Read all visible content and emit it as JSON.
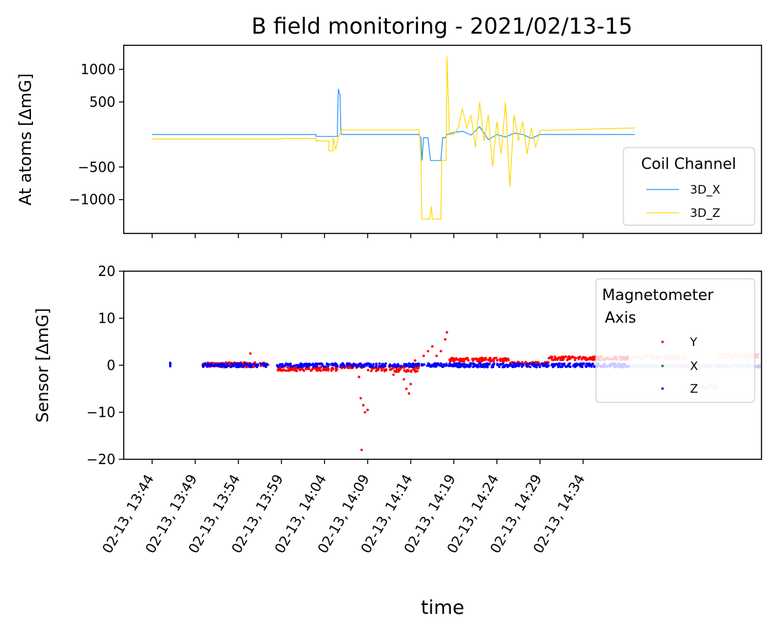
{
  "figure": {
    "title": "B field monitoring - 2021/02/13-15"
  },
  "chart_data": [
    {
      "type": "line",
      "ylabel": "At atoms [ΔmG]",
      "ylim": [
        -1520,
        1370
      ],
      "yticks": [
        1000,
        500,
        -500,
        -1000
      ],
      "ytick_labels": [
        "1000",
        "500",
        "−500",
        "−1000"
      ],
      "xlim": [
        -3.3,
        70.7
      ],
      "legend": {
        "title": "Coil Channel",
        "placement": "lower-right"
      },
      "series": [
        {
          "name": "3D_X",
          "color": "#1e90ff",
          "points": [
            [
              0,
              0
            ],
            [
              19,
              0
            ],
            [
              19,
              -30
            ],
            [
              21.5,
              -30
            ],
            [
              21.5,
              120
            ],
            [
              21.6,
              700
            ],
            [
              21.8,
              600
            ],
            [
              21.9,
              20
            ],
            [
              22,
              0
            ],
            [
              31,
              0
            ],
            [
              31,
              -20
            ],
            [
              31.2,
              -50
            ],
            [
              31.3,
              -400
            ],
            [
              31.5,
              -50
            ],
            [
              32,
              -50
            ],
            [
              32.3,
              -400
            ],
            [
              33.5,
              -400
            ],
            [
              33.7,
              -50
            ],
            [
              34,
              -50
            ],
            [
              34.2,
              0
            ],
            [
              35,
              30
            ],
            [
              36,
              50
            ],
            [
              37,
              -10
            ],
            [
              38,
              120
            ],
            [
              39,
              -80
            ],
            [
              40,
              0
            ],
            [
              41,
              -40
            ],
            [
              42,
              20
            ],
            [
              43,
              0
            ],
            [
              44,
              -60
            ],
            [
              45,
              0
            ],
            [
              56,
              0
            ]
          ]
        },
        {
          "name": "3D_Z",
          "color": "#ffd700",
          "points": [
            [
              0,
              -70
            ],
            [
              15,
              -70
            ],
            [
              15,
              -60
            ],
            [
              19,
              -60
            ],
            [
              19,
              -100
            ],
            [
              20.5,
              -100
            ],
            [
              20.5,
              -250
            ],
            [
              21,
              -250
            ],
            [
              21,
              -50
            ],
            [
              21.3,
              -230
            ],
            [
              21.6,
              -50
            ],
            [
              22,
              70
            ],
            [
              31,
              70
            ],
            [
              31.2,
              -400
            ],
            [
              31.3,
              -1300
            ],
            [
              32.2,
              -1300
            ],
            [
              32.4,
              -1100
            ],
            [
              32.5,
              -1300
            ],
            [
              33.5,
              -1300
            ],
            [
              33.6,
              -400
            ],
            [
              34.1,
              -400
            ],
            [
              34.2,
              1200
            ],
            [
              34.5,
              0
            ],
            [
              35,
              0
            ],
            [
              35.5,
              100
            ],
            [
              36,
              400
            ],
            [
              36.5,
              100
            ],
            [
              37,
              300
            ],
            [
              37.5,
              -200
            ],
            [
              38,
              500
            ],
            [
              38.5,
              -100
            ],
            [
              39,
              300
            ],
            [
              39.5,
              -500
            ],
            [
              40,
              200
            ],
            [
              40.5,
              -300
            ],
            [
              41,
              500
            ],
            [
              41.5,
              -800
            ],
            [
              42,
              300
            ],
            [
              42.5,
              -100
            ],
            [
              43,
              200
            ],
            [
              43.5,
              -300
            ],
            [
              44,
              100
            ],
            [
              44.5,
              -200
            ],
            [
              45,
              60
            ],
            [
              56,
              100
            ]
          ]
        }
      ]
    },
    {
      "type": "scatter",
      "xlabel": "time",
      "ylabel": "Sensor [ΔmG]",
      "ylim": [
        -20,
        20
      ],
      "yticks": [
        20,
        10,
        0,
        -10,
        -20
      ],
      "ytick_labels": [
        "20",
        "10",
        "0",
        "−10",
        "−20"
      ],
      "xlim": [
        -3.3,
        70.7
      ],
      "xticks": [
        0,
        5,
        10,
        15,
        20,
        25,
        30,
        35,
        40,
        45,
        50
      ],
      "xtick_labels": [
        "02-13, 13:44",
        "02-13, 13:49",
        "02-13, 13:54",
        "02-13, 13:59",
        "02-13, 14:04",
        "02-13, 14:09",
        "02-13, 14:14",
        "02-13, 14:19",
        "02-13, 14:24",
        "02-13, 14:29",
        "02-13, 14:34"
      ],
      "legend": {
        "title": "Magnetometer\n Axis",
        "placement": "upper-right"
      },
      "series": [
        {
          "name": "Y",
          "color": "#ff0000",
          "segments": [
            {
              "x0": 5.8,
              "x1": 13.5,
              "y": 0.1,
              "spread": 0.5
            },
            {
              "x0": 14.5,
              "x1": 21.5,
              "y": -0.8,
              "spread": 0.4
            },
            {
              "x0": 21.5,
              "x1": 24.5,
              "y": -0.2,
              "spread": 0.4
            },
            {
              "x0": 25,
              "x1": 31,
              "y": -0.8,
              "spread": 0.6
            },
            {
              "x0": 34.5,
              "x1": 41.5,
              "y": 1.2,
              "spread": 0.4
            },
            {
              "x0": 41.5,
              "x1": 46,
              "y": 0.4,
              "spread": 0.3
            },
            {
              "x0": 46,
              "x1": 55.5,
              "y": 1.5,
              "spread": 0.4
            }
          ],
          "points": [
            [
              11.4,
              2.5
            ],
            [
              24,
              -2.5
            ],
            [
              24.2,
              -7
            ],
            [
              24.5,
              -8.5
            ],
            [
              24.7,
              -10
            ],
            [
              25,
              -9.5
            ],
            [
              24.3,
              -18
            ],
            [
              28,
              -2
            ],
            [
              29.2,
              -3
            ],
            [
              29.5,
              -5
            ],
            [
              29.8,
              -6
            ],
            [
              30,
              -4
            ],
            [
              30.5,
              1
            ],
            [
              31.5,
              2
            ],
            [
              32,
              3
            ],
            [
              32.5,
              4
            ],
            [
              33,
              2
            ],
            [
              33.5,
              3
            ],
            [
              34.2,
              7
            ],
            [
              34,
              5.5
            ]
          ]
        },
        {
          "name": "Y",
          "color": "#ffcccc",
          "segments": [
            {
              "x0": 55.5,
              "x1": 62,
              "y": 1.7,
              "spread": 0.4
            },
            {
              "x0": 62,
              "x1": 65.5,
              "y": -4.6,
              "spread": 0.5
            },
            {
              "x0": 65.5,
              "x1": 70.5,
              "y": 2,
              "spread": 0.4
            }
          ],
          "points": []
        },
        {
          "name": "X",
          "color": "#008000",
          "segments": [],
          "points": [
            [
              2.1,
              0.3
            ],
            [
              14.5,
              0
            ],
            [
              22,
              0
            ]
          ]
        },
        {
          "name": "Z",
          "color": "#0000ff",
          "segments": [
            {
              "x0": 5.8,
              "x1": 13.5,
              "y": 0,
              "spread": 0.4
            },
            {
              "x0": 14.5,
              "x1": 55.5,
              "y": 0,
              "spread": 0.4
            }
          ],
          "points": [
            [
              2.1,
              0.1
            ],
            [
              2.1,
              0.5
            ],
            [
              2.1,
              -0.2
            ]
          ]
        },
        {
          "name": "Z",
          "color": "#c8c8f8",
          "segments": [
            {
              "x0": 55.5,
              "x1": 70.5,
              "y": -0.2,
              "spread": 0.3
            }
          ],
          "points": []
        }
      ]
    }
  ]
}
